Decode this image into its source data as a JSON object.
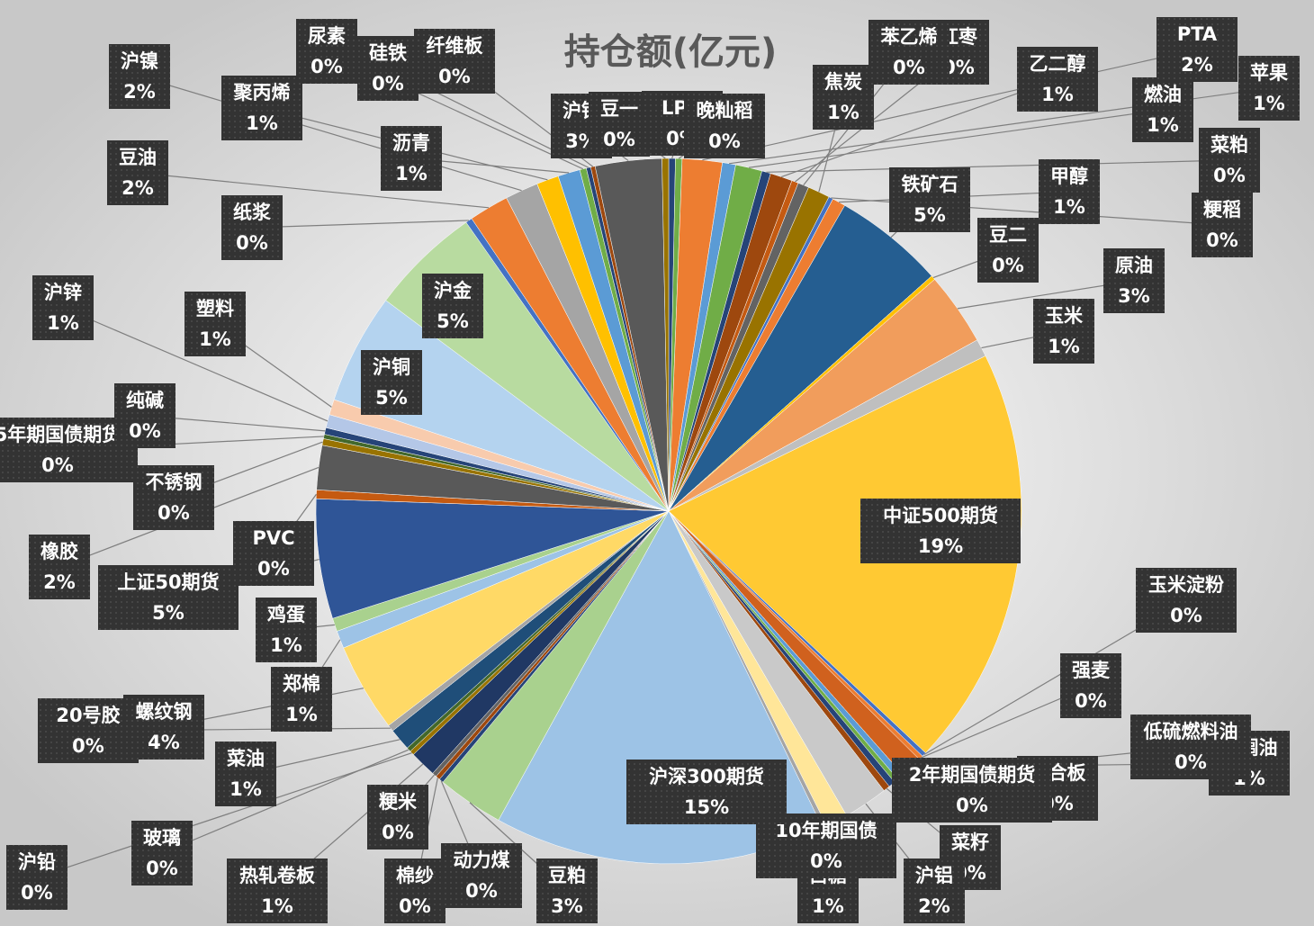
{
  "chart_data": {
    "type": "pie",
    "title": "持仓额(亿元)",
    "categories": [
      "LPG",
      "晚籼稻",
      "PTA",
      "苹果",
      "燃油",
      "菜粕",
      "乙二醇",
      "红枣",
      "苯乙烯",
      "焦炭",
      "粳稻",
      "甲醇",
      "铁矿石",
      "豆二",
      "原油",
      "玉米",
      "中证500期货",
      "玉米淀粉",
      "强麦",
      "棕榈油",
      "低硫燃料油",
      "胶合板",
      "2年期国债期货",
      "菜籽",
      "沪铝",
      "白糖",
      "10年期国债",
      "沪深300期货",
      "豆粕",
      "动力煤",
      "棉纱",
      "粳米",
      "热轧卷板",
      "沪铅",
      "玻璃",
      "菜油",
      "20号胶",
      "螺纹钢",
      "郑棉",
      "鸡蛋",
      "上证50期货",
      "PVC",
      "橡胶",
      "不锈钢",
      "5年期国债期货",
      "纯碱",
      "沪锌",
      "塑料",
      "沪铜",
      "沪金",
      "纸浆",
      "豆油",
      "沪镍",
      "聚丙烯",
      "沥青",
      "尿素",
      "硅铁",
      "纤维板",
      "沪银",
      "豆一"
    ],
    "values": [
      0.3,
      0.3,
      1.8,
      0.6,
      1.2,
      0.4,
      1.0,
      0.3,
      0.5,
      1.0,
      0.2,
      0.6,
      5.0,
      0.2,
      3.3,
      0.8,
      19.0,
      0.2,
      0.2,
      1.0,
      0.3,
      0.2,
      0.3,
      0.3,
      2.0,
      1.0,
      0.2,
      15.0,
      3.0,
      0.2,
      0.2,
      0.2,
      1.2,
      0.2,
      0.2,
      1.0,
      0.3,
      4.0,
      0.8,
      0.6,
      5.4,
      0.4,
      2.0,
      0.3,
      0.2,
      0.3,
      0.6,
      0.7,
      5.0,
      5.0,
      0.3,
      1.8,
      1.5,
      1.0,
      1.0,
      0.3,
      0.2,
      0.2,
      3.0,
      0.3
    ],
    "value_labels": [
      "0%",
      "0%",
      "2%",
      "1%",
      "1%",
      "0%",
      "1%",
      "0%",
      "0%",
      "1%",
      "0%",
      "1%",
      "5%",
      "0%",
      "3%",
      "1%",
      "19%",
      "0%",
      "0%",
      "1%",
      "0%",
      "0%",
      "0%",
      "0%",
      "2%",
      "1%",
      "0%",
      "15%",
      "3%",
      "0%",
      "0%",
      "0%",
      "1%",
      "0%",
      "0%",
      "1%",
      "0%",
      "4%",
      "1%",
      "1%",
      "5%",
      "0%",
      "2%",
      "0%",
      "0%",
      "0%",
      "1%",
      "1%",
      "5%",
      "5%",
      "0%",
      "2%",
      "2%",
      "1%",
      "1%",
      "0%",
      "0%",
      "0%",
      "3%",
      "0%"
    ],
    "colors": [
      "#264478",
      "#70ad47",
      "#ed7d31",
      "#5b9bd5",
      "#70ad47",
      "#264478",
      "#9e480e",
      "#c55a11",
      "#636363",
      "#997300",
      "#4472c4",
      "#ed7d31",
      "#255e91",
      "#ffc000",
      "#f19d5c",
      "#bfbfbf",
      "#ffc933",
      "#4472c4",
      "#ed7d31",
      "#d0611e",
      "#5b9bd5",
      "#70ad47",
      "#264478",
      "#9e480e",
      "#c9c9c9",
      "#ffe699",
      "#a5a5a5",
      "#9dc3e6",
      "#a9d18e",
      "#264478",
      "#9e480e",
      "#636363",
      "#203864",
      "#997300",
      "#43682b",
      "#1f4e79",
      "#a5a5a5",
      "#ffd966",
      "#9dc3e6",
      "#a9d18e",
      "#2f5597",
      "#c55a11",
      "#595959",
      "#997300",
      "#43682b",
      "#264478",
      "#b4c7e7",
      "#f8cbad",
      "#b4d3ef",
      "#b8dba0",
      "#4472c4",
      "#ed7d31",
      "#a5a5a5",
      "#ffc000",
      "#5b9bd5",
      "#70ad47",
      "#264478",
      "#9e480e",
      "#595959",
      "#997300"
    ]
  }
}
